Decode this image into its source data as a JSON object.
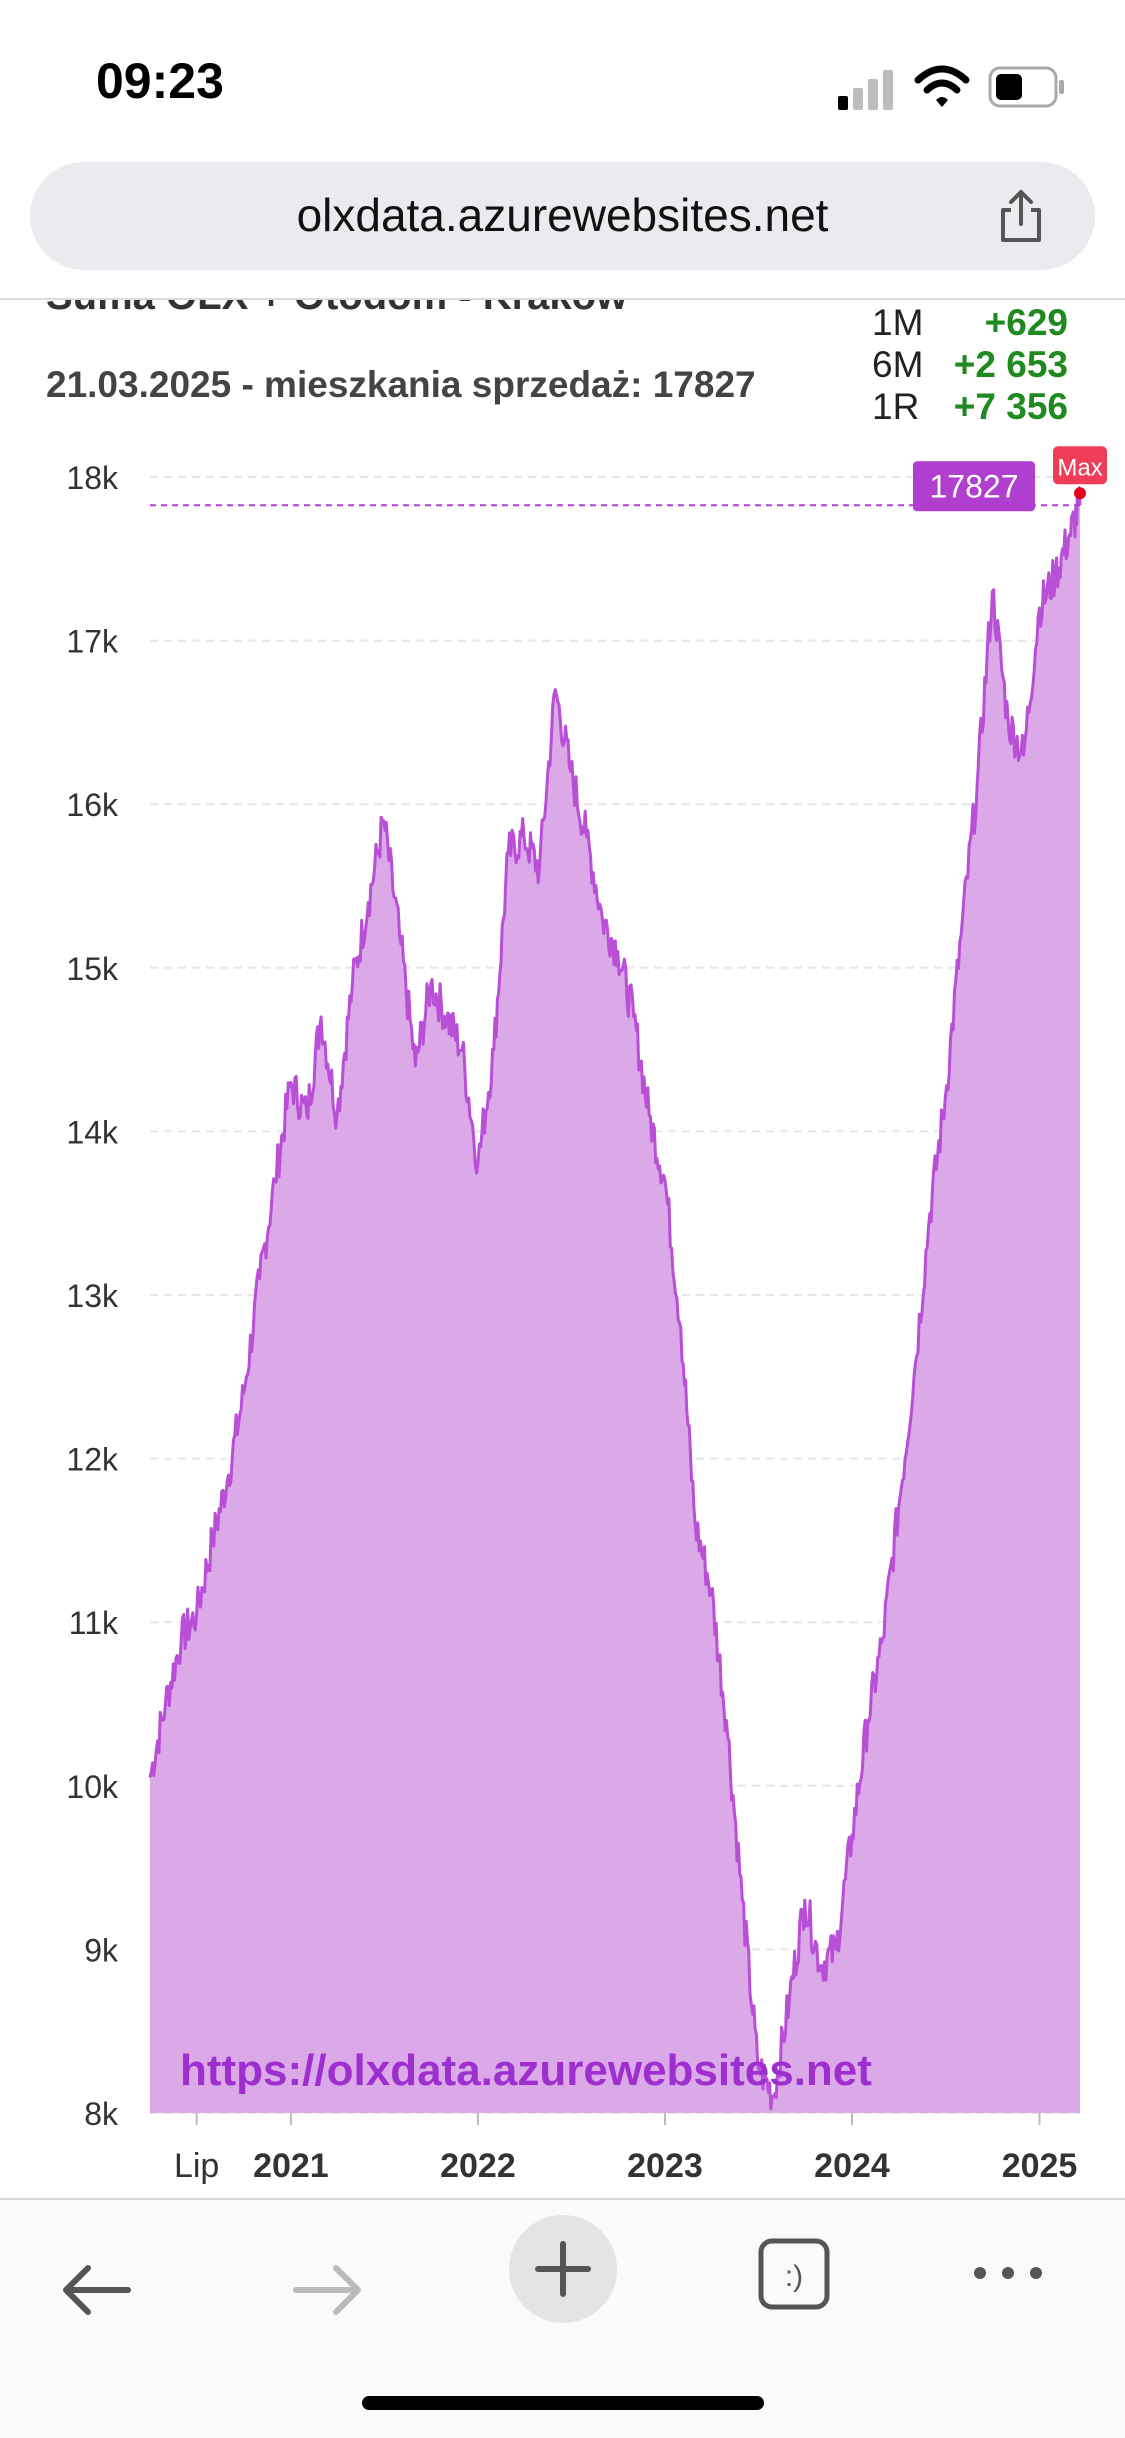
{
  "status_bar": {
    "time": "09:23"
  },
  "browser": {
    "url": "olxdata.azurewebsites.net"
  },
  "page": {
    "title": "Suma OLX + Otodom - Kraków",
    "subtitle": "21.03.2025 - mieszkania sprzedaż: 17827"
  },
  "stats": [
    {
      "label": "1M",
      "value": "+629"
    },
    {
      "label": "6M",
      "value": "+2 653"
    },
    {
      "label": "1R",
      "value": "+7 356"
    }
  ],
  "colors": {
    "fill": "#dba8e8",
    "line": "#b94fd6",
    "current": "#b03fd0",
    "max": "#ef3d58",
    "up": "#1f8a1f",
    "watermark": "#9d2fcf"
  },
  "chart_data": {
    "type": "area",
    "ylim": [
      8000,
      18000
    ],
    "yticks": [
      "8k",
      "9k",
      "10k",
      "11k",
      "12k",
      "13k",
      "14k",
      "15k",
      "16k",
      "17k",
      "18k"
    ],
    "xlim": [
      "2020-04-01",
      "2025-03-21"
    ],
    "xticks": [
      {
        "label": "Lip",
        "date": "2020-07-01",
        "bold": false
      },
      {
        "label": "2021",
        "date": "2021-01-01",
        "bold": true
      },
      {
        "label": "2022",
        "date": "2022-01-01",
        "bold": true
      },
      {
        "label": "2023",
        "date": "2023-01-01",
        "bold": true
      },
      {
        "label": "2024",
        "date": "2024-01-01",
        "bold": true
      },
      {
        "label": "2025",
        "date": "2025-01-01",
        "bold": true
      }
    ],
    "current_value": 17827,
    "current_label": "17827",
    "max_label": "Max",
    "watermark": "https://olxdata.azurewebsites.net",
    "series": [
      {
        "x": [
          "2020-04-01",
          "2020-05-01",
          "2020-06-01",
          "2020-07-01",
          "2020-08-01",
          "2020-09-01",
          "2020-10-01",
          "2020-11-01",
          "2020-12-01",
          "2021-01-01",
          "2021-02-01",
          "2021-03-01",
          "2021-04-01",
          "2021-05-01",
          "2021-06-01",
          "2021-07-01",
          "2021-08-01",
          "2021-09-01",
          "2021-10-01",
          "2021-11-01",
          "2021-12-01",
          "2022-01-01",
          "2022-02-01",
          "2022-03-01",
          "2022-04-01",
          "2022-05-01",
          "2022-06-01",
          "2022-07-01",
          "2022-08-01",
          "2022-09-01",
          "2022-10-01",
          "2022-11-01",
          "2022-12-01",
          "2023-01-01",
          "2023-02-01",
          "2023-03-01",
          "2023-04-01",
          "2023-05-01",
          "2023-06-01",
          "2023-07-01",
          "2023-08-01",
          "2023-09-01",
          "2023-10-01",
          "2023-11-01",
          "2023-12-01",
          "2024-01-01",
          "2024-02-01",
          "2024-03-01",
          "2024-04-01",
          "2024-05-01",
          "2024-06-01",
          "2024-07-01",
          "2024-08-01",
          "2024-09-01",
          "2024-10-01",
          "2024-11-01",
          "2024-12-01",
          "2025-01-01",
          "2025-02-01",
          "2025-03-01",
          "2025-03-21"
        ],
        "y": [
          10050,
          10500,
          10900,
          11050,
          11500,
          11900,
          12400,
          13100,
          13700,
          14300,
          14100,
          14700,
          14100,
          14900,
          15400,
          15900,
          15200,
          14400,
          14900,
          14700,
          14500,
          13800,
          14500,
          15700,
          15800,
          15600,
          16700,
          16200,
          15800,
          15300,
          15100,
          14700,
          14100,
          13700,
          12800,
          11600,
          11200,
          10400,
          9300,
          8300,
          8100,
          8700,
          9300,
          8900,
          9000,
          9700,
          10400,
          10900,
          11700,
          12500,
          13500,
          14200,
          15200,
          16100,
          17300,
          16500,
          16300,
          17200,
          17400,
          17650,
          17827
        ]
      }
    ]
  }
}
